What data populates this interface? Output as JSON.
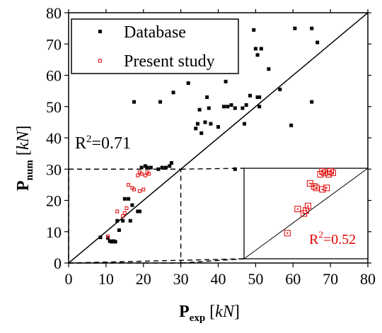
{
  "chart_data": {
    "type": "scatter",
    "x_axis": {
      "label_main": "P",
      "label_sub": "exp",
      "label_unit_open": " [",
      "label_unit": "kN",
      "label_unit_close": "]",
      "range": [
        0,
        80
      ],
      "ticks": [
        0,
        10,
        20,
        30,
        40,
        50,
        60,
        70,
        80
      ]
    },
    "y_axis": {
      "label_main": "P",
      "label_sub": "num",
      "label_unit_open": " [",
      "label_unit": "kN",
      "label_unit_close": "]",
      "range": [
        0,
        80
      ],
      "ticks": [
        0,
        10,
        20,
        30,
        40,
        50,
        60,
        70,
        80
      ]
    },
    "grid": false,
    "legend": {
      "placement": "top-left"
    },
    "reference_line": "y = x",
    "zoom_region": {
      "x": [
        0,
        30
      ],
      "y": [
        0,
        30
      ]
    },
    "series": [
      {
        "name": "Database",
        "color": "#000000",
        "marker": "filled-square",
        "points": [
          [
            8.5,
            8.2
          ],
          [
            10.5,
            8.0
          ],
          [
            11.0,
            7.0
          ],
          [
            11.5,
            6.8
          ],
          [
            12.0,
            7.0
          ],
          [
            12.5,
            6.8
          ],
          [
            13.0,
            13.5
          ],
          [
            13.5,
            10.5
          ],
          [
            14.5,
            13.5
          ],
          [
            15.0,
            20.5
          ],
          [
            16.0,
            20.5
          ],
          [
            16.5,
            13.5
          ],
          [
            17.0,
            18.5
          ],
          [
            18.5,
            16.5
          ],
          [
            19.0,
            16.5
          ],
          [
            19.5,
            30.5
          ],
          [
            20.5,
            31.0
          ],
          [
            21.0,
            30.5
          ],
          [
            22.0,
            30.5
          ],
          [
            24.0,
            30.0
          ],
          [
            25.0,
            30.5
          ],
          [
            26.0,
            30.5
          ],
          [
            27.0,
            31.0
          ],
          [
            27.5,
            32.0
          ],
          [
            44.5,
            30.0
          ],
          [
            17.5,
            51.5
          ],
          [
            24.5,
            51.5
          ],
          [
            28.0,
            54.5
          ],
          [
            32.0,
            57.5
          ],
          [
            34.0,
            43.0
          ],
          [
            34.5,
            44.5
          ],
          [
            35.0,
            49.0
          ],
          [
            35.5,
            41.5
          ],
          [
            35.5,
            63.5
          ],
          [
            36.5,
            45.0
          ],
          [
            37.0,
            53.0
          ],
          [
            37.5,
            49.5
          ],
          [
            38.0,
            44.5
          ],
          [
            40.0,
            43.5
          ],
          [
            41.5,
            50.0
          ],
          [
            42.0,
            58.0
          ],
          [
            42.5,
            50.0
          ],
          [
            43.5,
            50.5
          ],
          [
            44.5,
            49.5
          ],
          [
            46.5,
            49.5
          ],
          [
            47.0,
            44.5
          ],
          [
            47.5,
            50.5
          ],
          [
            48.5,
            53.5
          ],
          [
            49.5,
            74.5
          ],
          [
            50.0,
            68.5
          ],
          [
            50.5,
            66.5
          ],
          [
            50.5,
            53.0
          ],
          [
            51.0,
            53.0
          ],
          [
            51.0,
            50.0
          ],
          [
            51.5,
            68.5
          ],
          [
            53.5,
            62.0
          ],
          [
            56.5,
            55.5
          ],
          [
            59.5,
            44.0
          ],
          [
            60.5,
            75.0
          ],
          [
            65.0,
            75.0
          ],
          [
            65.0,
            51.5
          ],
          [
            66.5,
            70.5
          ]
        ]
      },
      {
        "name": "Present study",
        "color": "#e00000",
        "marker": "open-square",
        "points": [
          [
            10.5,
            8.5
          ],
          [
            13.0,
            16.5
          ],
          [
            14.5,
            15.0
          ],
          [
            15.0,
            16.0
          ],
          [
            15.5,
            17.5
          ],
          [
            16.0,
            25.0
          ],
          [
            17.0,
            24.0
          ],
          [
            17.5,
            23.5
          ],
          [
            18.5,
            28.0
          ],
          [
            19.0,
            23.0
          ],
          [
            19.0,
            29.0
          ],
          [
            19.5,
            28.5
          ],
          [
            20.0,
            23.5
          ],
          [
            20.5,
            28.0
          ],
          [
            21.0,
            29.0
          ],
          [
            21.5,
            28.5
          ]
        ]
      }
    ],
    "annotations": {
      "r2_main": "R²=0.71",
      "r2_inset": "R²=0.52"
    }
  }
}
